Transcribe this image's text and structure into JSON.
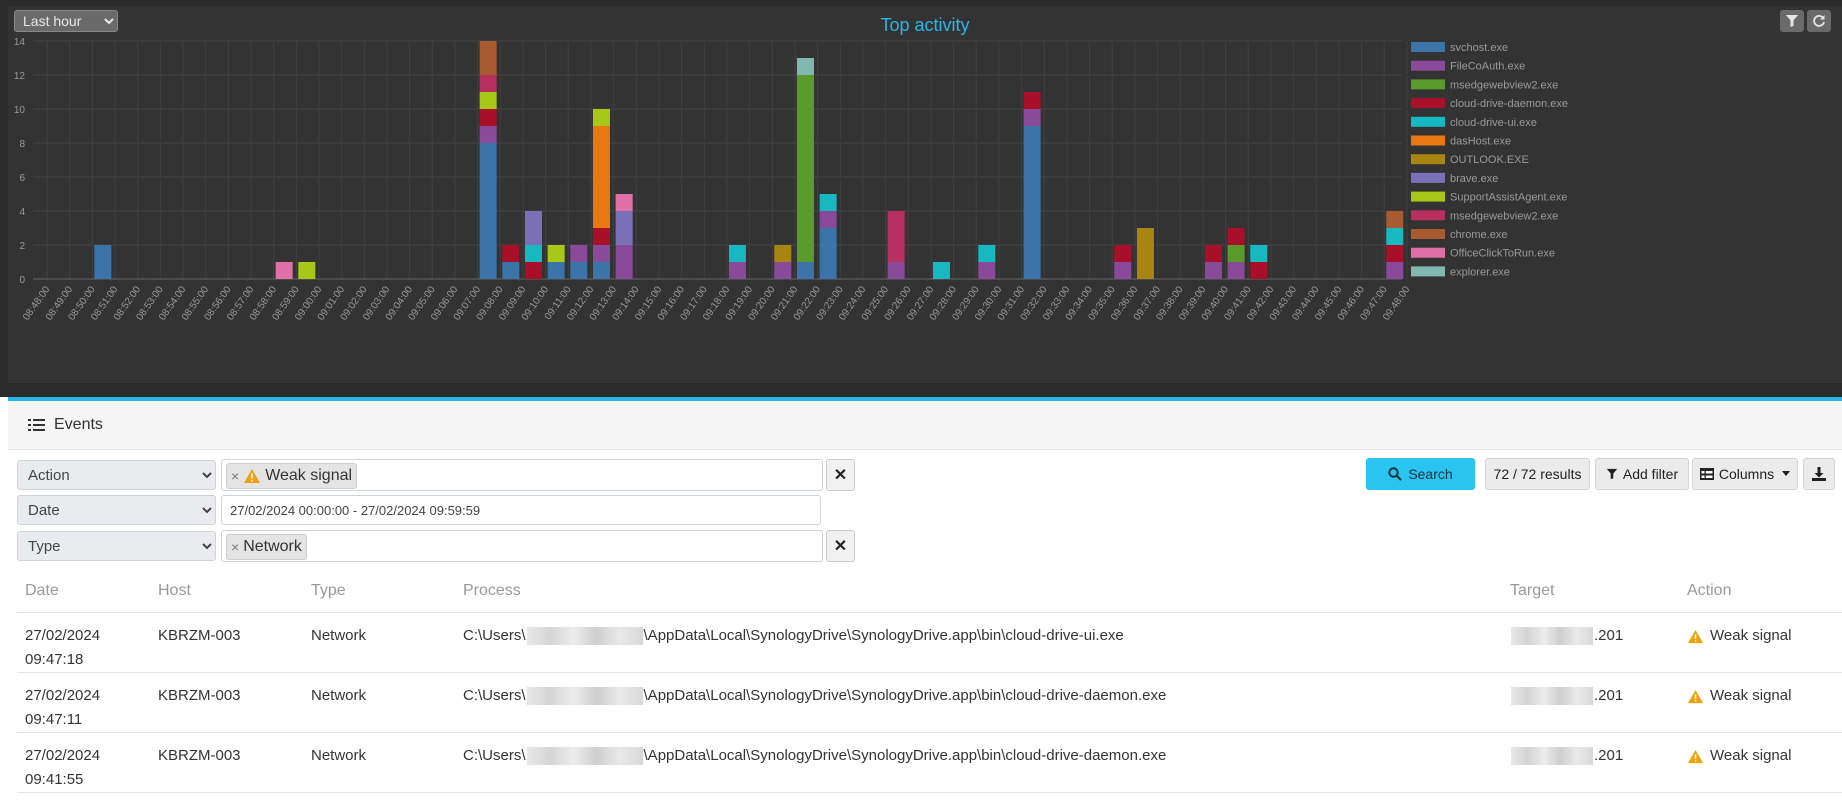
{
  "time_range": "Last hour",
  "chart_title": "Top activity",
  "chart_data": {
    "type": "bar",
    "stacked": true,
    "title": "Top activity",
    "ylim": [
      0,
      14
    ],
    "yticks": [
      0,
      2,
      4,
      6,
      8,
      10,
      12,
      14
    ],
    "grid": true,
    "legend_position": "right",
    "categories": [
      "08:48:00",
      "08:49:00",
      "08:50:00",
      "08:51:00",
      "08:52:00",
      "08:53:00",
      "08:54:00",
      "08:55:00",
      "08:56:00",
      "08:57:00",
      "08:58:00",
      "08:59:00",
      "09:00:00",
      "09:01:00",
      "09:02:00",
      "09:03:00",
      "09:04:00",
      "09:05:00",
      "09:06:00",
      "09:07:00",
      "09:08:00",
      "09:09:00",
      "09:10:00",
      "09:11:00",
      "09:12:00",
      "09:13:00",
      "09:14:00",
      "09:15:00",
      "09:16:00",
      "09:17:00",
      "09:18:00",
      "09:19:00",
      "09:20:00",
      "09:21:00",
      "09:22:00",
      "09:23:00",
      "09:24:00",
      "09:25:00",
      "09:26:00",
      "09:27:00",
      "09:28:00",
      "09:29:00",
      "09:30:00",
      "09:31:00",
      "09:32:00",
      "09:33:00",
      "09:34:00",
      "09:35:00",
      "09:36:00",
      "09:37:00",
      "09:38:00",
      "09:39:00",
      "09:40:00",
      "09:41:00",
      "09:42:00",
      "09:43:00",
      "09:44:00",
      "09:45:00",
      "09:46:00",
      "09:47:00",
      "09:48:00"
    ],
    "series": [
      {
        "name": "svchost.exe",
        "color": "#3a74a8",
        "values": [
          0,
          0,
          2,
          0,
          0,
          0,
          0,
          0,
          0,
          0,
          0,
          0,
          0,
          0,
          0,
          0,
          0,
          0,
          0,
          8,
          1,
          0,
          1,
          1,
          1,
          0,
          0,
          0,
          0,
          0,
          0,
          0,
          0,
          1,
          3,
          0,
          0,
          0,
          0,
          0,
          0,
          0,
          0,
          9,
          0,
          0,
          0,
          0,
          0,
          0,
          0,
          0,
          0,
          0,
          0,
          0,
          0,
          0,
          0,
          0,
          0
        ]
      },
      {
        "name": "FileCoAuth.exe",
        "color": "#8a4a9a",
        "values": [
          0,
          0,
          0,
          0,
          0,
          0,
          0,
          0,
          0,
          0,
          0,
          0,
          0,
          0,
          0,
          0,
          0,
          0,
          0,
          1,
          0,
          0,
          0,
          1,
          1,
          2,
          0,
          0,
          0,
          0,
          1,
          0,
          1,
          0,
          1,
          0,
          0,
          1,
          0,
          0,
          0,
          1,
          0,
          1,
          0,
          0,
          0,
          1,
          0,
          0,
          0,
          1,
          1,
          0,
          0,
          0,
          0,
          0,
          0,
          1,
          0
        ]
      },
      {
        "name": "msedgewebview2.exe",
        "color": "#5a9a2a",
        "values": [
          0,
          0,
          0,
          0,
          0,
          0,
          0,
          0,
          0,
          0,
          0,
          0,
          0,
          0,
          0,
          0,
          0,
          0,
          0,
          0,
          0,
          0,
          0,
          0,
          0,
          0,
          0,
          0,
          0,
          0,
          0,
          0,
          0,
          11,
          0,
          0,
          0,
          0,
          0,
          0,
          0,
          0,
          0,
          0,
          0,
          0,
          0,
          0,
          0,
          0,
          0,
          0,
          1,
          0,
          0,
          0,
          0,
          0,
          0,
          0,
          0
        ]
      },
      {
        "name": "cloud-drive-daemon.exe",
        "color": "#a8102a",
        "values": [
          0,
          0,
          0,
          0,
          0,
          0,
          0,
          0,
          0,
          0,
          0,
          0,
          0,
          0,
          0,
          0,
          0,
          0,
          0,
          1,
          1,
          1,
          0,
          0,
          1,
          0,
          0,
          0,
          0,
          0,
          0,
          0,
          0,
          0,
          0,
          0,
          0,
          0,
          0,
          0,
          0,
          0,
          0,
          1,
          0,
          0,
          0,
          1,
          0,
          0,
          0,
          1,
          1,
          1,
          0,
          0,
          0,
          0,
          0,
          1,
          0
        ]
      },
      {
        "name": "cloud-drive-ui.exe",
        "color": "#18b8c0",
        "values": [
          0,
          0,
          0,
          0,
          0,
          0,
          0,
          0,
          0,
          0,
          0,
          0,
          0,
          0,
          0,
          0,
          0,
          0,
          0,
          0,
          0,
          1,
          0,
          0,
          0,
          0,
          0,
          0,
          0,
          0,
          1,
          0,
          0,
          0,
          1,
          0,
          0,
          0,
          0,
          1,
          0,
          1,
          0,
          0,
          0,
          0,
          0,
          0,
          0,
          0,
          0,
          0,
          0,
          1,
          0,
          0,
          0,
          0,
          0,
          1,
          0
        ]
      },
      {
        "name": "dasHost.exe",
        "color": "#e87810",
        "values": [
          0,
          0,
          0,
          0,
          0,
          0,
          0,
          0,
          0,
          0,
          0,
          0,
          0,
          0,
          0,
          0,
          0,
          0,
          0,
          0,
          0,
          0,
          0,
          0,
          6,
          0,
          0,
          0,
          0,
          0,
          0,
          0,
          0,
          0,
          0,
          0,
          0,
          0,
          0,
          0,
          0,
          0,
          0,
          0,
          0,
          0,
          0,
          0,
          0,
          0,
          0,
          0,
          0,
          0,
          0,
          0,
          0,
          0,
          0,
          0,
          0
        ]
      },
      {
        "name": "OUTLOOK.EXE",
        "color": "#a88410",
        "values": [
          0,
          0,
          0,
          0,
          0,
          0,
          0,
          0,
          0,
          0,
          0,
          0,
          0,
          0,
          0,
          0,
          0,
          0,
          0,
          0,
          0,
          0,
          0,
          0,
          0,
          0,
          0,
          0,
          0,
          0,
          0,
          0,
          1,
          0,
          0,
          0,
          0,
          0,
          0,
          0,
          0,
          0,
          0,
          0,
          0,
          0,
          0,
          0,
          3,
          0,
          0,
          0,
          0,
          0,
          0,
          0,
          0,
          0,
          0,
          0,
          0
        ]
      },
      {
        "name": "brave.exe",
        "color": "#7a70b8",
        "values": [
          0,
          0,
          0,
          0,
          0,
          0,
          0,
          0,
          0,
          0,
          0,
          0,
          0,
          0,
          0,
          0,
          0,
          0,
          0,
          0,
          0,
          2,
          0,
          0,
          0,
          2,
          0,
          0,
          0,
          0,
          0,
          0,
          0,
          0,
          0,
          0,
          0,
          0,
          0,
          0,
          0,
          0,
          0,
          0,
          0,
          0,
          0,
          0,
          0,
          0,
          0,
          0,
          0,
          0,
          0,
          0,
          0,
          0,
          0,
          0,
          0
        ]
      },
      {
        "name": "SupportAssistAgent.exe",
        "color": "#a8c818",
        "values": [
          0,
          0,
          0,
          0,
          0,
          0,
          0,
          0,
          0,
          0,
          0,
          1,
          0,
          0,
          0,
          0,
          0,
          0,
          0,
          1,
          0,
          0,
          1,
          0,
          1,
          0,
          0,
          0,
          0,
          0,
          0,
          0,
          0,
          0,
          0,
          0,
          0,
          0,
          0,
          0,
          0,
          0,
          0,
          0,
          0,
          0,
          0,
          0,
          0,
          0,
          0,
          0,
          0,
          0,
          0,
          0,
          0,
          0,
          0,
          0,
          0
        ]
      },
      {
        "name": "msedgewebview2.exe",
        "color": "#b83060",
        "values": [
          0,
          0,
          0,
          0,
          0,
          0,
          0,
          0,
          0,
          0,
          0,
          0,
          0,
          0,
          0,
          0,
          0,
          0,
          0,
          1,
          0,
          0,
          0,
          0,
          0,
          0,
          0,
          0,
          0,
          0,
          0,
          0,
          0,
          0,
          0,
          0,
          0,
          3,
          0,
          0,
          0,
          0,
          0,
          0,
          0,
          0,
          0,
          0,
          0,
          0,
          0,
          0,
          0,
          0,
          0,
          0,
          0,
          0,
          0,
          0,
          0
        ]
      },
      {
        "name": "chrome.exe",
        "color": "#a85a30",
        "values": [
          0,
          0,
          0,
          0,
          0,
          0,
          0,
          0,
          0,
          0,
          0,
          0,
          0,
          0,
          0,
          0,
          0,
          0,
          0,
          2,
          0,
          0,
          0,
          0,
          0,
          0,
          0,
          0,
          0,
          0,
          0,
          0,
          0,
          0,
          0,
          0,
          0,
          0,
          0,
          0,
          0,
          0,
          0,
          0,
          0,
          0,
          0,
          0,
          0,
          0,
          0,
          0,
          0,
          0,
          0,
          0,
          0,
          0,
          0,
          1,
          0
        ]
      },
      {
        "name": "OfficeClickToRun.exe",
        "color": "#e070a8",
        "values": [
          0,
          0,
          0,
          0,
          0,
          0,
          0,
          0,
          0,
          0,
          1,
          0,
          0,
          0,
          0,
          0,
          0,
          0,
          0,
          0,
          0,
          0,
          0,
          0,
          0,
          1,
          0,
          0,
          0,
          0,
          0,
          0,
          0,
          0,
          0,
          0,
          0,
          0,
          0,
          0,
          0,
          0,
          0,
          0,
          0,
          0,
          0,
          0,
          0,
          0,
          0,
          0,
          0,
          0,
          0,
          0,
          0,
          0,
          0,
          0,
          0
        ]
      },
      {
        "name": "explorer.exe",
        "color": "#80b8b0",
        "values": [
          0,
          0,
          0,
          0,
          0,
          0,
          0,
          0,
          0,
          0,
          0,
          0,
          0,
          0,
          0,
          0,
          0,
          0,
          0,
          0,
          0,
          0,
          0,
          0,
          0,
          0,
          0,
          0,
          0,
          0,
          0,
          0,
          0,
          1,
          0,
          0,
          0,
          0,
          0,
          0,
          0,
          0,
          0,
          0,
          0,
          0,
          0,
          0,
          0,
          0,
          0,
          0,
          0,
          0,
          0,
          0,
          0,
          0,
          0,
          0,
          0
        ]
      }
    ]
  },
  "events_title": "Events",
  "filters": [
    {
      "field": "Action",
      "tag": "Weak signal"
    },
    {
      "field": "Date",
      "value": "27/02/2024 00:00:00 - 27/02/2024 09:59:59"
    },
    {
      "field": "Type",
      "tag": "Network"
    }
  ],
  "search_label": "Search",
  "results_label": "72 / 72 results",
  "add_filter_label": "Add filter",
  "columns_label": "Columns",
  "table": {
    "headers": [
      "Date",
      "Host",
      "Type",
      "Process",
      "Target",
      "Action"
    ],
    "rows": [
      {
        "date": "27/02/2024",
        "time": "09:47:18",
        "host": "KBRZM-003",
        "type": "Network",
        "process_prefix": "C:\\Users\\",
        "process_suffix": "\\AppData\\Local\\SynologyDrive\\SynologyDrive.app\\bin\\cloud-drive-ui.exe",
        "target_suffix": ".201",
        "action": "Weak signal"
      },
      {
        "date": "27/02/2024",
        "time": "09:47:11",
        "host": "KBRZM-003",
        "type": "Network",
        "process_prefix": "C:\\Users\\",
        "process_suffix": "\\AppData\\Local\\SynologyDrive\\SynologyDrive.app\\bin\\cloud-drive-daemon.exe",
        "target_suffix": ".201",
        "action": "Weak signal"
      },
      {
        "date": "27/02/2024",
        "time": "09:41:55",
        "host": "KBRZM-003",
        "type": "Network",
        "process_prefix": "C:\\Users\\",
        "process_suffix": "\\AppData\\Local\\SynologyDrive\\SynologyDrive.app\\bin\\cloud-drive-daemon.exe",
        "target_suffix": ".201",
        "action": "Weak signal"
      }
    ]
  },
  "colors": {
    "accent": "#29b6e8",
    "warning": "#f0a010",
    "chart_bg": "#333333"
  }
}
